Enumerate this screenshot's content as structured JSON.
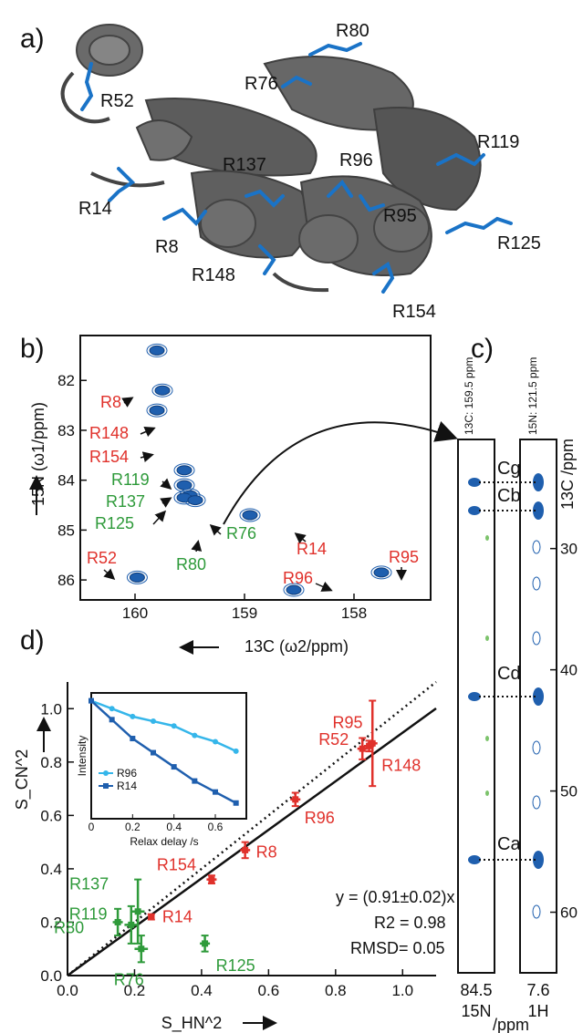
{
  "colors": {
    "protein": "#5a5a5a",
    "arginine": "#1a73c7",
    "red": "#e0312b",
    "green": "#2e9a3a",
    "cyan": "#35b6ea",
    "blue": "#1f5fae"
  },
  "panel_a": {
    "label": "a)",
    "residues": [
      "R80",
      "R76",
      "R52",
      "R137",
      "R96",
      "R119",
      "R14",
      "R95",
      "R8",
      "R125",
      "R148",
      "R154"
    ]
  },
  "panel_b": {
    "label": "b)",
    "y_axis_label": "15N (ω1/ppm)",
    "x_axis_label": "13C (ω2/ppm)",
    "x_ticks": [
      "160",
      "159",
      "158"
    ],
    "y_ticks": [
      "82",
      "83",
      "84",
      "85",
      "86"
    ],
    "red_labels": [
      "R8",
      "R148",
      "R154",
      "R52",
      "R14",
      "R96",
      "R95"
    ],
    "green_labels": [
      "R119",
      "R137",
      "R125",
      "R80",
      "R76"
    ]
  },
  "panel_c": {
    "label": "c)",
    "strip1_header": "13C: 159.5 ppm",
    "strip2_header": "15N: 121.5 ppm",
    "y_axis_label": "13C /ppm",
    "y_ticks": [
      "30",
      "40",
      "50",
      "60"
    ],
    "cross_peaks": [
      "Cg",
      "Cb",
      "Cd",
      "Ca"
    ],
    "strip1_value": "84.5",
    "strip2_value": "7.6",
    "strip1_nucleus": "15N",
    "strip2_nucleus": "1H",
    "unit": "/ppm"
  },
  "panel_d": {
    "label": "d)",
    "equation": "y = (0.91±0.02)x",
    "r2": "R2 = 0.98",
    "rmsd": "RMSD= 0.05",
    "inset": {
      "ylabel": "Intensity",
      "xlabel": "Relax delay /s",
      "x_ticks": [
        "0",
        "0.2",
        "0.4",
        "0.6"
      ],
      "legend": [
        "R96",
        "R14"
      ]
    }
  },
  "chart_data": [
    {
      "type": "scatter",
      "title": "",
      "xlabel": "S_HN^2",
      "ylabel": "S_CN^2",
      "xlim": [
        0.0,
        1.1
      ],
      "ylim": [
        0.0,
        1.1
      ],
      "x_ticks": [
        "0.0",
        "0.2",
        "0.4",
        "0.6",
        "0.8",
        "1.0"
      ],
      "y_ticks": [
        "0.0",
        "0.2",
        "0.4",
        "0.6",
        "0.8",
        "1.0"
      ],
      "series": [
        {
          "name": "",
          "color": "#e0312b",
          "points": [
            {
              "label": "R14",
              "x": 0.25,
              "y": 0.22,
              "xerr": 0.01,
              "yerr": 0.01
            },
            {
              "label": "R154",
              "x": 0.43,
              "y": 0.36,
              "xerr": 0.015,
              "yerr": 0.015
            },
            {
              "label": "R8",
              "x": 0.53,
              "y": 0.47,
              "xerr": 0.015,
              "yerr": 0.03
            },
            {
              "label": "R96",
              "x": 0.68,
              "y": 0.66,
              "xerr": 0.015,
              "yerr": 0.025
            },
            {
              "label": "R52",
              "x": 0.88,
              "y": 0.85,
              "xerr": 0.015,
              "yerr": 0.04
            },
            {
              "label": "R95",
              "x": 0.9,
              "y": 0.86,
              "xerr": 0.015,
              "yerr": 0.02
            },
            {
              "label": "R148",
              "x": 0.91,
              "y": 0.87,
              "xerr": 0.015,
              "yerr": 0.16
            }
          ]
        },
        {
          "name": "",
          "color": "#2e9a3a",
          "points": [
            {
              "label": "R137",
              "x": 0.21,
              "y": 0.24,
              "xerr": 0.02,
              "yerr": 0.12
            },
            {
              "label": "R119",
              "x": 0.19,
              "y": 0.19,
              "xerr": 0.02,
              "yerr": 0.07
            },
            {
              "label": "R80",
              "x": 0.15,
              "y": 0.2,
              "xerr": 0.015,
              "yerr": 0.05
            },
            {
              "label": "R76",
              "x": 0.22,
              "y": 0.1,
              "xerr": 0.02,
              "yerr": 0.05
            },
            {
              "label": "R125",
              "x": 0.41,
              "y": 0.12,
              "xerr": 0.015,
              "yerr": 0.03
            }
          ]
        }
      ],
      "fit_line": {
        "slope": 0.91
      },
      "reference_line": {
        "slope": 1.0,
        "style": "dotted"
      }
    },
    {
      "type": "line",
      "title": "",
      "xlabel": "Relax delay /s",
      "ylabel": "Intensity",
      "xlim": [
        0.0,
        0.75
      ],
      "series": [
        {
          "name": "R96",
          "color": "#35b6ea",
          "x": [
            0.0,
            0.1,
            0.2,
            0.3,
            0.4,
            0.5,
            0.6,
            0.7
          ],
          "y": [
            1.0,
            0.95,
            0.9,
            0.87,
            0.84,
            0.78,
            0.74,
            0.68
          ]
        },
        {
          "name": "R14",
          "color": "#1f5fae",
          "x": [
            0.0,
            0.1,
            0.2,
            0.3,
            0.4,
            0.5,
            0.6,
            0.7
          ],
          "y": [
            1.0,
            0.88,
            0.76,
            0.67,
            0.58,
            0.49,
            0.42,
            0.35
          ]
        }
      ]
    },
    {
      "type": "scatter",
      "title": "",
      "xlabel": "13C (ω2/ppm)",
      "ylabel": "15N (ω1/ppm)",
      "xlim": [
        160.5,
        157.3
      ],
      "ylim": [
        86.4,
        81.1
      ],
      "points": [
        {
          "label": "R8",
          "x": 159.8,
          "y": 81.4
        },
        {
          "label": "R148",
          "x": 159.75,
          "y": 82.2
        },
        {
          "label": "R154",
          "x": 159.8,
          "y": 82.6
        },
        {
          "label": "R119",
          "x": 159.55,
          "y": 83.8
        },
        {
          "label": "R137",
          "x": 159.55,
          "y": 84.1
        },
        {
          "label": "R125",
          "x": 159.5,
          "y": 84.3
        },
        {
          "label": "R80",
          "x": 159.55,
          "y": 84.35
        },
        {
          "label": "R76",
          "x": 159.45,
          "y": 84.4
        },
        {
          "label": "R14",
          "x": 158.95,
          "y": 84.7
        },
        {
          "label": "R52",
          "x": 159.98,
          "y": 85.95
        },
        {
          "label": "R96",
          "x": 158.55,
          "y": 86.2
        },
        {
          "label": "R95",
          "x": 157.75,
          "y": 85.85
        }
      ]
    }
  ]
}
